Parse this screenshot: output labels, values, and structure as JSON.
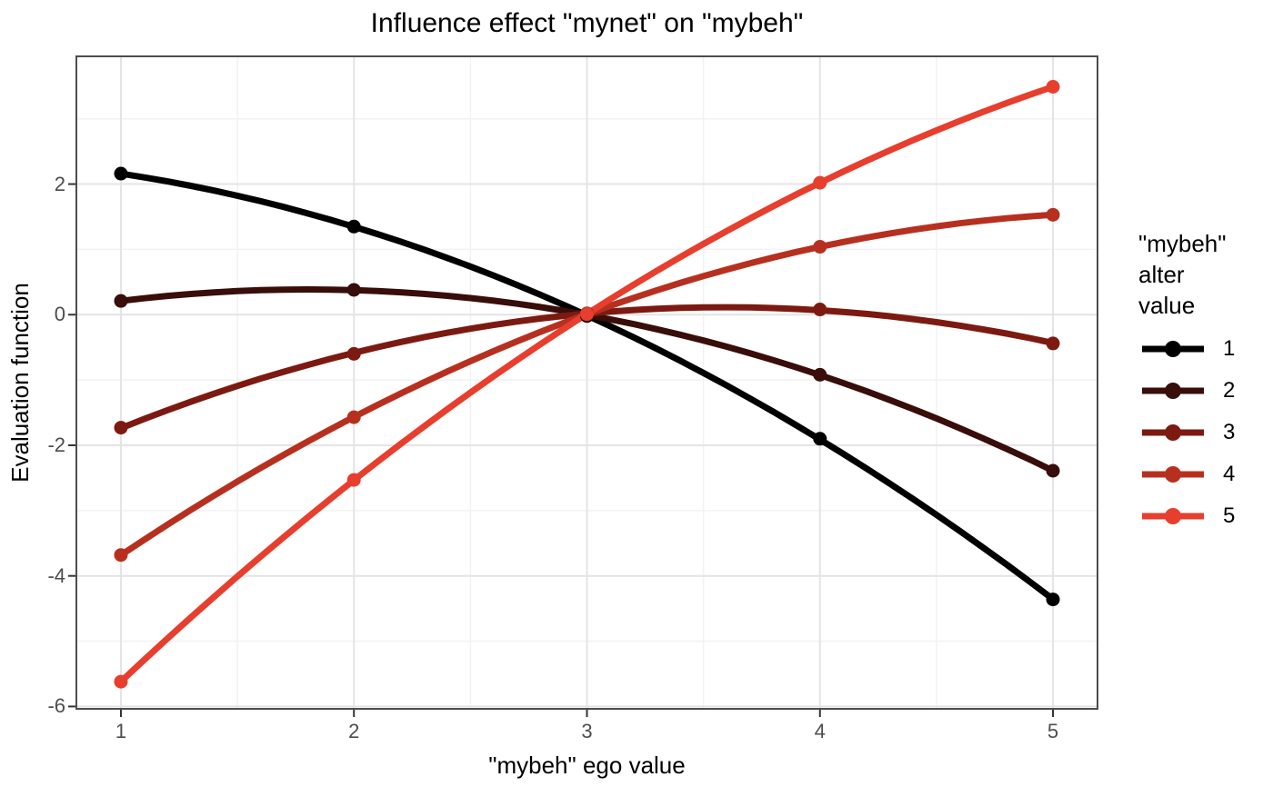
{
  "chart_data": {
    "type": "line",
    "title": "Influence effect \"mynet\" on \"mybeh\"",
    "xlabel": "\"mybeh\" ego value",
    "ylabel": "Evaluation function",
    "x": [
      1,
      2,
      3,
      4,
      5
    ],
    "series": [
      {
        "name": "1",
        "color": "#000000",
        "values": [
          2.16,
          1.35,
          -0.02,
          -1.9,
          -4.36
        ]
      },
      {
        "name": "2",
        "color": "#380D0A",
        "values": [
          0.21,
          0.38,
          -0.01,
          -0.92,
          -2.39
        ]
      },
      {
        "name": "3",
        "color": "#7C1A11",
        "values": [
          -1.73,
          -0.6,
          0.02,
          0.08,
          -0.44
        ]
      },
      {
        "name": "4",
        "color": "#B7301F",
        "values": [
          -3.68,
          -1.57,
          0.01,
          1.04,
          1.53
        ]
      },
      {
        "name": "5",
        "color": "#E73E2D",
        "values": [
          -5.62,
          -2.53,
          0.01,
          2.02,
          3.49
        ]
      }
    ],
    "x_tick_labels": [
      "1",
      "2",
      "3",
      "4",
      "5"
    ],
    "x_tick_values": [
      1,
      2,
      3,
      4,
      5
    ],
    "y_tick_labels": [
      "2",
      "0",
      "-2",
      "-4",
      "-6"
    ],
    "y_tick_values": [
      2,
      0,
      -2,
      -4,
      -6
    ],
    "x_minor": [
      1.5,
      2.5,
      3.5,
      4.5
    ],
    "y_minor": [
      3,
      1,
      -1,
      -3,
      -5
    ],
    "xlim": [
      0.805,
      5.195
    ],
    "ylim": [
      -6.05,
      3.97
    ],
    "grid": true,
    "legend_position": "right",
    "legend_title_lines": [
      "\"mybeh\"",
      "alter",
      "value"
    ],
    "legend_entries": [
      "1",
      "2",
      "3",
      "4",
      "5"
    ]
  },
  "style": {
    "background": "#FFFFFF",
    "panel_border": "#4D4D4D",
    "grid_major": "#E4E4E4",
    "grid_minor": "#F2F2F2",
    "tick_mark": "#333333",
    "tick_label_color": "#4D4D4D",
    "text_color": "#000000"
  }
}
